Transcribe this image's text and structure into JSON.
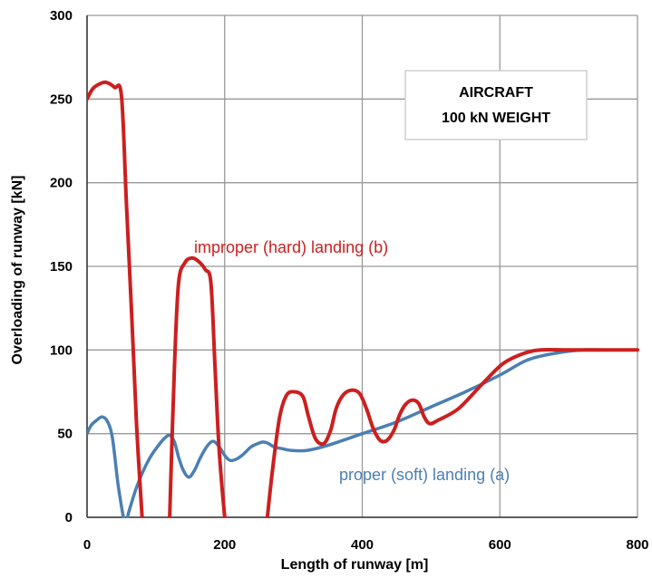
{
  "chart_data": {
    "type": "line",
    "xlabel": "Length of runway [m]",
    "ylabel": "Overloading of runway [kN]",
    "xlim": [
      0,
      800
    ],
    "ylim": [
      0,
      300
    ],
    "x_ticks": [
      "0",
      "200",
      "400",
      "600",
      "800"
    ],
    "y_ticks": [
      "0",
      "50",
      "100",
      "150",
      "200",
      "250",
      "300"
    ],
    "grid": true,
    "box_text": [
      "AIRCRAFT",
      "100 kN WEIGHT"
    ],
    "series": [
      {
        "label": "improper (hard) landing (b)",
        "color": "#cc1f1f",
        "segments": [
          [
            [
              0,
              250
            ],
            [
              8,
              256
            ],
            [
              18,
              259
            ],
            [
              28,
              260
            ],
            [
              40,
              257
            ],
            [
              50,
              252
            ],
            [
              57,
              190
            ],
            [
              65,
              120
            ],
            [
              72,
              55
            ],
            [
              80,
              0
            ]
          ],
          [
            [
              120,
              0
            ],
            [
              127,
              90
            ],
            [
              133,
              140
            ],
            [
              142,
              152
            ],
            [
              152,
              155
            ],
            [
              162,
              153
            ],
            [
              172,
              148
            ],
            [
              180,
              140
            ],
            [
              186,
              90
            ],
            [
              192,
              40
            ],
            [
              200,
              0
            ]
          ],
          [
            [
              262,
              0
            ],
            [
              270,
              30
            ],
            [
              280,
              60
            ],
            [
              290,
              73
            ],
            [
              302,
              75
            ],
            [
              314,
              72
            ],
            [
              322,
              60
            ],
            [
              332,
              47
            ],
            [
              344,
              44
            ],
            [
              354,
              52
            ],
            [
              362,
              65
            ],
            [
              372,
              73
            ],
            [
              384,
              76
            ],
            [
              396,
              74
            ],
            [
              406,
              65
            ],
            [
              416,
              53
            ],
            [
              426,
              46
            ],
            [
              436,
              46
            ],
            [
              446,
              52
            ],
            [
              454,
              61
            ],
            [
              462,
              67
            ],
            [
              472,
              70
            ],
            [
              482,
              68
            ],
            [
              490,
              60
            ],
            [
              498,
              56
            ],
            [
              510,
              58
            ],
            [
              540,
              65
            ],
            [
              575,
              80
            ],
            [
              605,
              92
            ],
            [
              635,
              98
            ],
            [
              660,
              100
            ],
            [
              700,
              100
            ],
            [
              740,
              100
            ],
            [
              800,
              100
            ]
          ]
        ]
      },
      {
        "label": "proper (soft) landing  (a)",
        "color": "#4b7fb3",
        "segments": [
          [
            [
              0,
              50
            ],
            [
              6,
              55
            ],
            [
              14,
              58
            ],
            [
              22,
              60
            ],
            [
              30,
              57
            ],
            [
              37,
              47
            ],
            [
              45,
              20
            ],
            [
              53,
              0
            ],
            [
              57,
              -2
            ],
            [
              62,
              5
            ],
            [
              72,
              18
            ],
            [
              82,
              28
            ],
            [
              92,
              36
            ],
            [
              102,
              42
            ],
            [
              112,
              47
            ],
            [
              120,
              49
            ],
            [
              127,
              45
            ],
            [
              133,
              36
            ],
            [
              140,
              28
            ],
            [
              148,
              24
            ],
            [
              156,
              28
            ],
            [
              164,
              35
            ],
            [
              172,
              41
            ],
            [
              180,
              45
            ],
            [
              186,
              45
            ],
            [
              194,
              41
            ],
            [
              200,
              37
            ],
            [
              208,
              34
            ],
            [
              218,
              35
            ],
            [
              228,
              38
            ],
            [
              238,
              42
            ],
            [
              248,
              44
            ],
            [
              256,
              45
            ],
            [
              264,
              44
            ],
            [
              272,
              42
            ],
            [
              284,
              41
            ],
            [
              296,
              40
            ],
            [
              320,
              40
            ],
            [
              350,
              43
            ],
            [
              400,
              50
            ],
            [
              450,
              57
            ],
            [
              500,
              66
            ],
            [
              550,
              75
            ],
            [
              600,
              85
            ],
            [
              640,
              94
            ],
            [
              680,
              98
            ],
            [
              720,
              100
            ],
            [
              760,
              100
            ],
            [
              800,
              100
            ]
          ]
        ]
      }
    ]
  }
}
